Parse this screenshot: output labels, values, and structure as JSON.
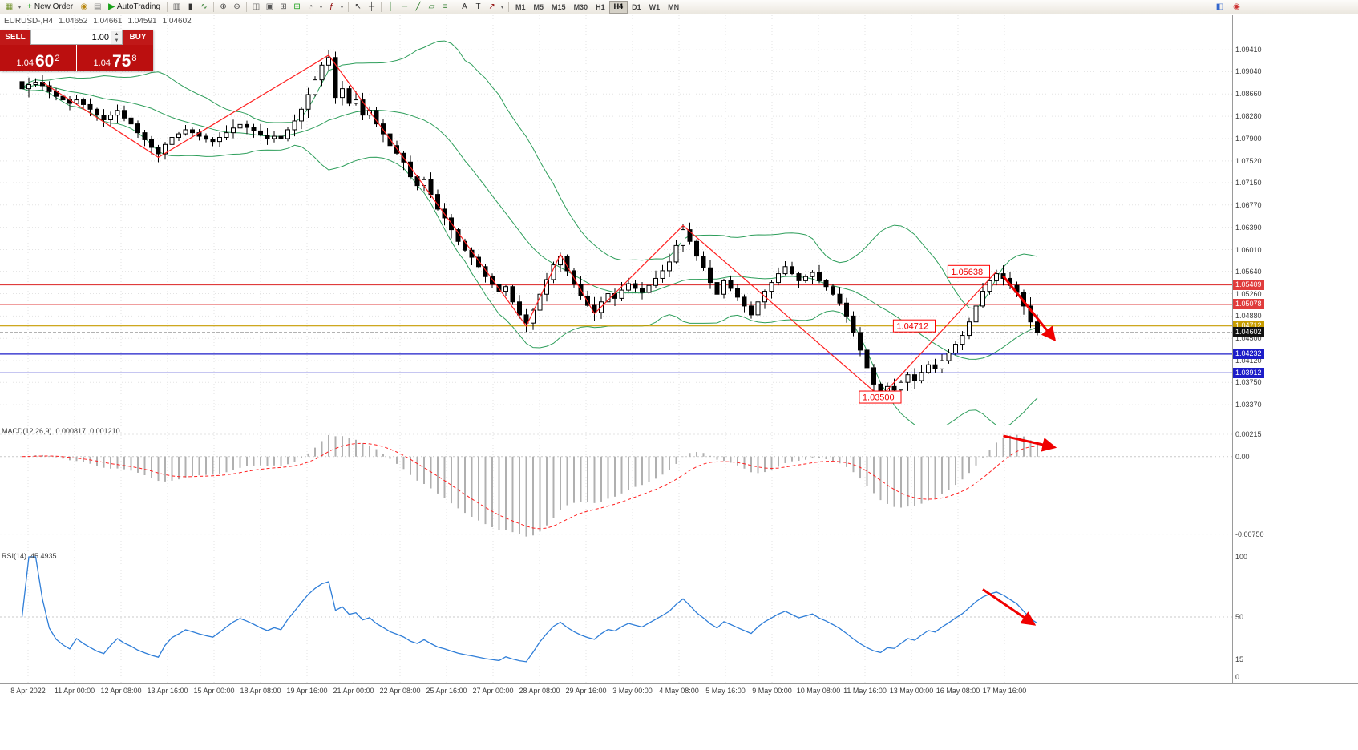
{
  "quote_bar": {
    "symbol_period": "EURUSD-,H4",
    "open": "1.04652",
    "high": "1.04661",
    "low": "1.04591",
    "close": "1.04602"
  },
  "one_click": {
    "sell_label": "SELL",
    "buy_label": "BUY",
    "volume": "1.00",
    "bid": {
      "prefix": "1.04",
      "big": "60",
      "sup": "2"
    },
    "ask": {
      "prefix": "1.04",
      "big": "75",
      "sup": "8"
    }
  },
  "toolbar": {
    "items": [
      {
        "t": "icon",
        "name": "new-chart",
        "g": "▦",
        "c": "#6b8e23"
      },
      {
        "t": "dd",
        "name": "new-chart-dropdown"
      },
      {
        "t": "btn",
        "name": "new-order",
        "g": "+",
        "c": "#18a018",
        "label": "New Order"
      },
      {
        "t": "icon",
        "name": "expert-advisors",
        "g": "◉",
        "c": "#b8860b"
      },
      {
        "t": "icon",
        "name": "profiles",
        "g": "▤",
        "c": "#777777"
      },
      {
        "t": "btn",
        "name": "autotrading",
        "g": "▶",
        "c": "#18a018",
        "label": "AutoTrading"
      },
      {
        "t": "sep"
      },
      {
        "t": "icon",
        "name": "bar-chart",
        "g": "▥",
        "c": "#555555"
      },
      {
        "t": "icon",
        "name": "candlestick-chart",
        "g": "▮",
        "c": "#333333"
      },
      {
        "t": "icon",
        "name": "line-chart",
        "g": "∿",
        "c": "#2a7a2a"
      },
      {
        "t": "sep"
      },
      {
        "t": "icon",
        "name": "zoom-in",
        "g": "⊕",
        "c": "#444444"
      },
      {
        "t": "icon",
        "name": "zoom-out",
        "g": "⊖",
        "c": "#444444"
      },
      {
        "t": "sep"
      },
      {
        "t": "icon",
        "name": "tile-windows",
        "g": "◫",
        "c": "#555555"
      },
      {
        "t": "icon",
        "name": "cascade-windows",
        "g": "▣",
        "c": "#555555"
      },
      {
        "t": "icon",
        "name": "arrange-windows",
        "g": "⊞",
        "c": "#555555"
      },
      {
        "t": "icon",
        "name": "new-template",
        "g": "⊞",
        "c": "#18a018"
      },
      {
        "t": "icon",
        "name": "period-clock",
        "g": "◔",
        "c": "#555555"
      },
      {
        "t": "dd",
        "name": "period-dropdown"
      },
      {
        "t": "icon",
        "name": "indicators",
        "g": "ƒ",
        "c": "#8b0000"
      },
      {
        "t": "dd",
        "name": "indicators-dropdown"
      },
      {
        "t": "sep"
      },
      {
        "t": "icon",
        "name": "cursor",
        "g": "↖",
        "c": "#333333"
      },
      {
        "t": "icon",
        "name": "crosshair",
        "g": "┼",
        "c": "#333333"
      },
      {
        "t": "sep"
      },
      {
        "t": "icon",
        "name": "vertical-line",
        "g": "│",
        "c": "#2a7a2a"
      },
      {
        "t": "icon",
        "name": "horizontal-line",
        "g": "─",
        "c": "#2a7a2a"
      },
      {
        "t": "icon",
        "name": "trendline",
        "g": "╱",
        "c": "#2a7a2a"
      },
      {
        "t": "icon",
        "name": "equidistant-channel",
        "g": "▱",
        "c": "#2a7a2a"
      },
      {
        "t": "icon",
        "name": "fibonacci-retracement",
        "g": "≡",
        "c": "#2a7a2a"
      },
      {
        "t": "sep"
      },
      {
        "t": "icon",
        "name": "text-tool",
        "g": "A",
        "c": "#333333"
      },
      {
        "t": "icon",
        "name": "text-label-tool",
        "g": "T",
        "c": "#333333"
      },
      {
        "t": "icon",
        "name": "arrows-tool",
        "g": "↗",
        "c": "#8b0000"
      },
      {
        "t": "dd",
        "name": "arrows-dropdown"
      },
      {
        "t": "sep"
      }
    ],
    "timeframes": [
      "M1",
      "M5",
      "M15",
      "M30",
      "H1",
      "H4",
      "D1",
      "W1",
      "MN"
    ],
    "active_timeframe": "H4",
    "right_icons": [
      {
        "name": "chart-shift",
        "g": "◧",
        "c": "#3366cc"
      },
      {
        "name": "docking",
        "g": "◉",
        "c": "#cc3333"
      }
    ]
  },
  "chart_data": {
    "type": "candlestick+indicators",
    "symbol": "EURUSD-",
    "timeframe": "H4",
    "price_scale": {
      "top": 1.1,
      "bottom": 1.0303,
      "ticks": [
        "1.09410",
        "1.09040",
        "1.08660",
        "1.08280",
        "1.07900",
        "1.07520",
        "1.07150",
        "1.06770",
        "1.06390",
        "1.06010",
        "1.05640",
        "1.05260",
        "1.04880",
        "1.04500",
        "1.04120",
        "1.03750",
        "1.03370"
      ]
    },
    "candles_close": [
      1.0875,
      1.0882,
      1.0886,
      1.088,
      1.087,
      1.0862,
      1.0856,
      1.085,
      1.0856,
      1.0848,
      1.084,
      1.083,
      1.0822,
      1.083,
      1.0838,
      1.0825,
      1.0815,
      1.08,
      1.0788,
      1.0775,
      1.0764,
      1.078,
      1.0792,
      1.0798,
      1.0805,
      1.08,
      1.0794,
      1.0789,
      1.0785,
      1.0792,
      1.08,
      1.0808,
      1.0814,
      1.0809,
      1.0803,
      1.0796,
      1.079,
      1.0794,
      1.079,
      1.0805,
      1.082,
      1.084,
      1.0865,
      1.089,
      1.0915,
      1.0928,
      1.086,
      1.0875,
      1.085,
      1.0856,
      1.083,
      1.0838,
      1.0815,
      1.0798,
      1.0778,
      1.0765,
      1.075,
      1.0725,
      1.071,
      1.072,
      1.0695,
      1.067,
      1.0655,
      1.0635,
      1.0615,
      1.06,
      1.0588,
      1.0572,
      1.0555,
      1.0542,
      1.053,
      1.0538,
      1.0512,
      1.049,
      1.0476,
      1.0498,
      1.0525,
      1.055,
      1.0575,
      1.059,
      1.0565,
      1.0542,
      1.0522,
      1.0506,
      1.0494,
      1.0512,
      1.0526,
      1.0518,
      1.0532,
      1.0543,
      1.0535,
      1.0528,
      1.054,
      1.0552,
      1.0565,
      1.058,
      1.0608,
      1.0635,
      1.0615,
      1.059,
      1.057,
      1.0545,
      1.0525,
      1.0548,
      1.0535,
      1.052,
      1.0505,
      1.049,
      1.0512,
      1.053,
      1.0545,
      1.056,
      1.0572,
      1.056,
      1.0548,
      1.0555,
      1.0562,
      1.0548,
      1.0538,
      1.0525,
      1.051,
      1.0488,
      1.046,
      1.043,
      1.04,
      1.0372,
      1.0355,
      1.0368,
      1.0362,
      1.0375,
      1.0388,
      1.0378,
      1.0392,
      1.0405,
      1.0398,
      1.0412,
      1.0425,
      1.044,
      1.0455,
      1.0478,
      1.0505,
      1.053,
      1.0548,
      1.056,
      1.0552,
      1.054,
      1.0528,
      1.0505,
      1.0478,
      1.04602
    ],
    "overlays": {
      "bollinger": {
        "period": 20,
        "deviation": 2,
        "color": "#2e9e5b"
      },
      "zigzag_color": "#ff2020",
      "zigzag_points": [
        [
          3,
          1.0886
        ],
        [
          20,
          1.0758
        ],
        [
          45,
          1.0932
        ],
        [
          74,
          1.0471
        ],
        [
          79,
          1.0593
        ],
        [
          84,
          1.0492
        ],
        [
          97,
          1.0642
        ],
        [
          126,
          1.035
        ],
        [
          143,
          1.05638
        ]
      ],
      "hlines": [
        {
          "price": 1.05409,
          "label": "1.05409",
          "color": "#e03c3c"
        },
        {
          "price": 1.05078,
          "label": "1.05078",
          "color": "#e03c3c"
        },
        {
          "price": 1.04712,
          "label": "1.04712",
          "color": "#c79c00"
        },
        {
          "price": 1.04232,
          "label": "1.04232",
          "color": "#1d1dc8"
        },
        {
          "price": 1.03912,
          "label": "1.03912",
          "color": "#1d1dc8"
        }
      ],
      "bid": {
        "price": 1.04602,
        "label": "1.04602",
        "tag_color": "#111111"
      },
      "price_boxes": [
        {
          "text": "1.05638",
          "end_index": 142,
          "price": 1.05638
        },
        {
          "text": "1.04712",
          "end_index": 134,
          "price": 1.04712
        },
        {
          "text": "1.03500",
          "end_index": 129,
          "price": 1.035
        }
      ],
      "arrow": {
        "from": [
          144,
          1.0556
        ],
        "to": [
          151.5,
          1.0448
        ],
        "color": "#f00000"
      }
    },
    "macd": {
      "label": "MACD(12,26,9)",
      "value_main": "0.000817",
      "value_signal": "0.001210",
      "fast": 12,
      "slow": 26,
      "signal": 9,
      "hist_color": "#b0b0b0",
      "signal_color": "#ff2020",
      "scale_top": 0.003,
      "scale_bottom": -0.009,
      "ticks": [
        {
          "v": 0.00215,
          "t": "0.00215"
        },
        {
          "v": 0,
          "t": "0.00"
        },
        {
          "v": -0.0075,
          "t": "-0.00750"
        }
      ],
      "arrow": {
        "from": [
          144,
          0.002
        ],
        "to": [
          151.5,
          0.0009
        ],
        "color": "#f00000"
      }
    },
    "rsi": {
      "label": "RSI(14)",
      "value": "45.4935",
      "period": 14,
      "color": "#2f7ed8",
      "ticks": [
        {
          "v": 100,
          "t": "100"
        },
        {
          "v": 50,
          "t": "50"
        },
        {
          "v": 15,
          "t": "15"
        },
        {
          "v": 0,
          "t": "0"
        }
      ],
      "levels": [
        50,
        15
      ],
      "arrow": {
        "from": [
          141,
          73
        ],
        "to": [
          148.5,
          44
        ],
        "color": "#f00000"
      }
    },
    "time_axis": [
      "8 Apr 2022",
      "11 Apr 00:00",
      "12 Apr 08:00",
      "13 Apr 16:00",
      "15 Apr 00:00",
      "18 Apr 08:00",
      "19 Apr 16:00",
      "21 Apr 00:00",
      "22 Apr 08:00",
      "25 Apr 16:00",
      "27 Apr 00:00",
      "28 Apr 08:00",
      "29 Apr 16:00",
      "3 May 00:00",
      "4 May 08:00",
      "5 May 16:00",
      "9 May 00:00",
      "10 May 08:00",
      "11 May 16:00",
      "13 May 00:00",
      "16 May 08:00",
      "17 May 16:00"
    ]
  }
}
